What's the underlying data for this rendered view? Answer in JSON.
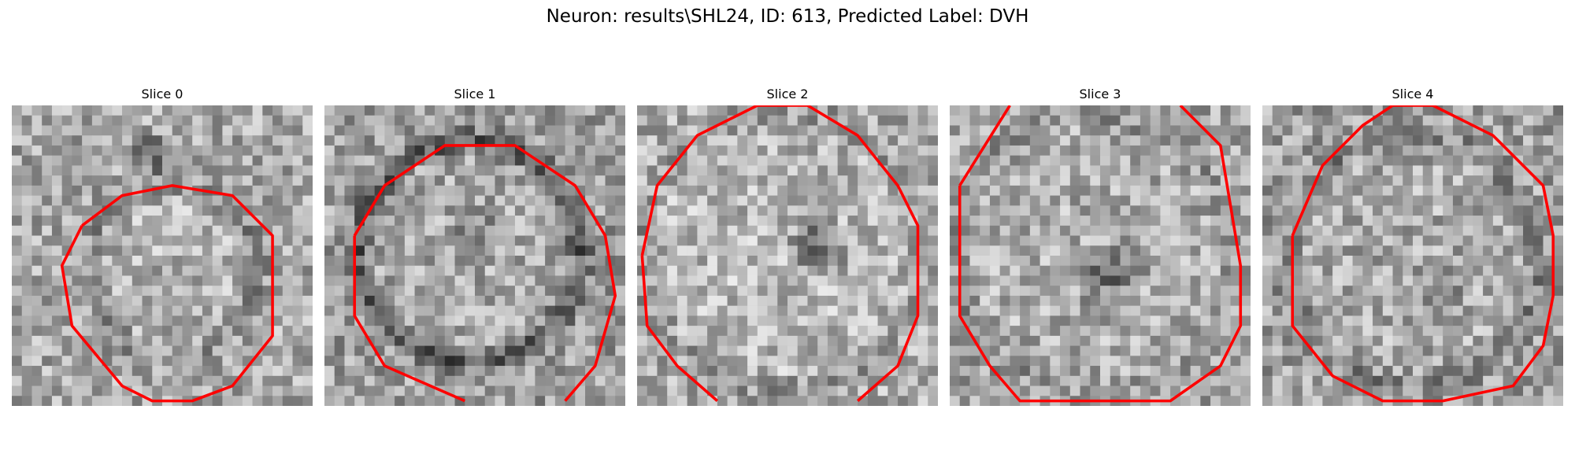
{
  "figure": {
    "title": "Neuron: results\\SHL24, ID: 613, Predicted Label: DVH"
  },
  "panels": [
    {
      "title": "Slice 0",
      "image": "grayscale-noise-cell-with-red-contour"
    },
    {
      "title": "Slice 1",
      "image": "grayscale-noise-cell-with-red-contour"
    },
    {
      "title": "Slice 2",
      "image": "grayscale-noise-cell-with-red-contour"
    },
    {
      "title": "Slice 3",
      "image": "grayscale-noise-cell-with-red-contour"
    },
    {
      "title": "Slice 4",
      "image": "grayscale-noise-cell-with-red-contour"
    }
  ],
  "colors": {
    "contour": "#ff0000",
    "background": "#ffffff"
  }
}
